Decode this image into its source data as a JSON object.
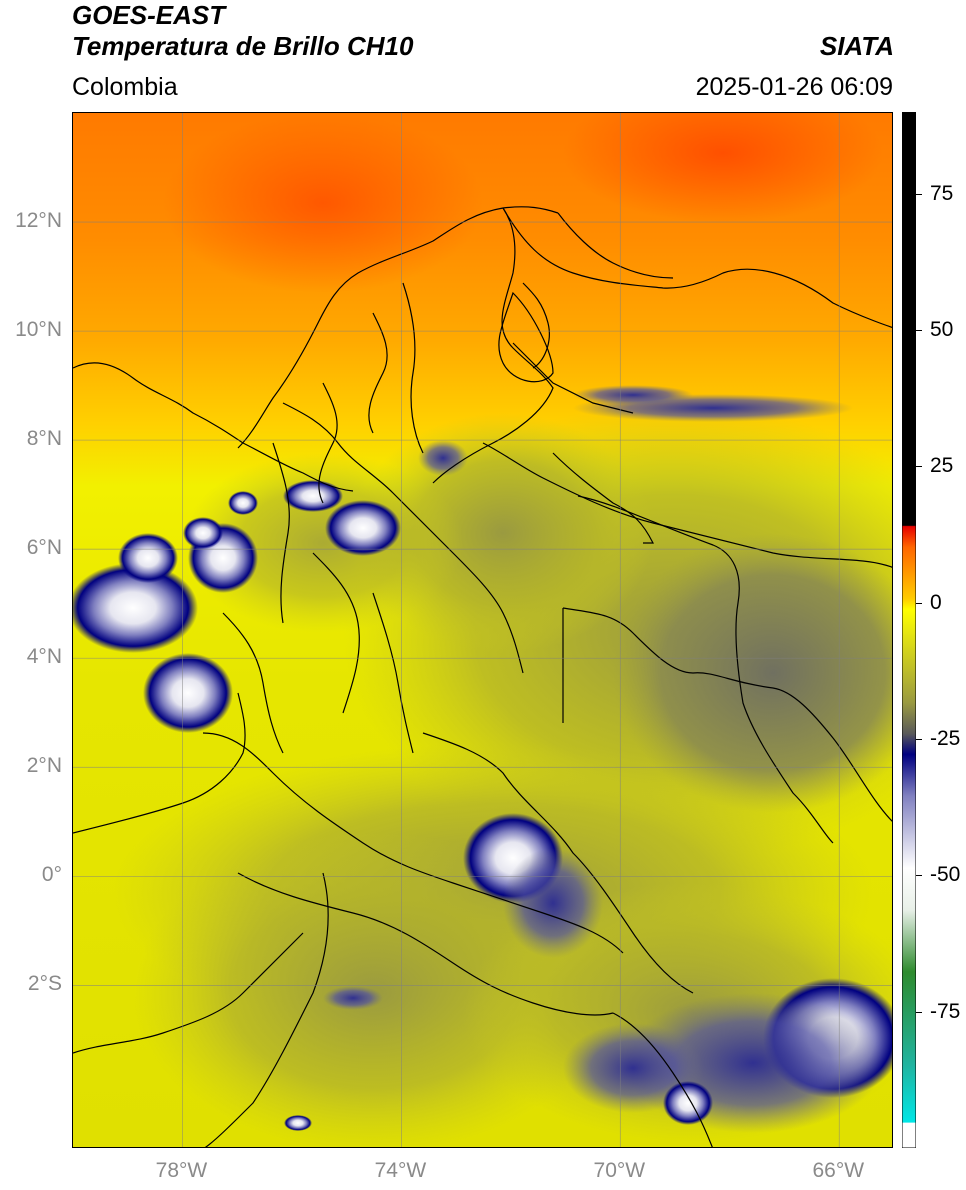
{
  "header": {
    "satellite": "GOES-EAST",
    "product": "Temperatura de Brillo CH10",
    "org": "SIATA",
    "region": "Colombia",
    "datetime": "2025-01-26 06:09"
  },
  "map": {
    "lat_ticks": [
      "12°N",
      "10°N",
      "8°N",
      "6°N",
      "4°N",
      "2°N",
      "0°",
      "2°S"
    ],
    "lon_ticks": [
      "78°W",
      "74°W",
      "70°W",
      "66°W"
    ],
    "lon_range": [
      -80,
      -65
    ],
    "lat_range": [
      -5,
      14
    ],
    "gridlines": true
  },
  "colorbar": {
    "labels": [
      "75",
      "50",
      "25",
      "0",
      "-25",
      "-50",
      "-75"
    ],
    "range": [
      -100,
      90
    ],
    "colors": {
      "white": "#ffffff",
      "cyan": "#00e6e6",
      "green": "#2e8b2e",
      "navy": "#000080",
      "gray": "#6e6e64",
      "olive": "#b4b428",
      "yellow": "#ffff00",
      "orange": "#ff8c00",
      "red": "#e60000",
      "black": "#000000"
    }
  }
}
